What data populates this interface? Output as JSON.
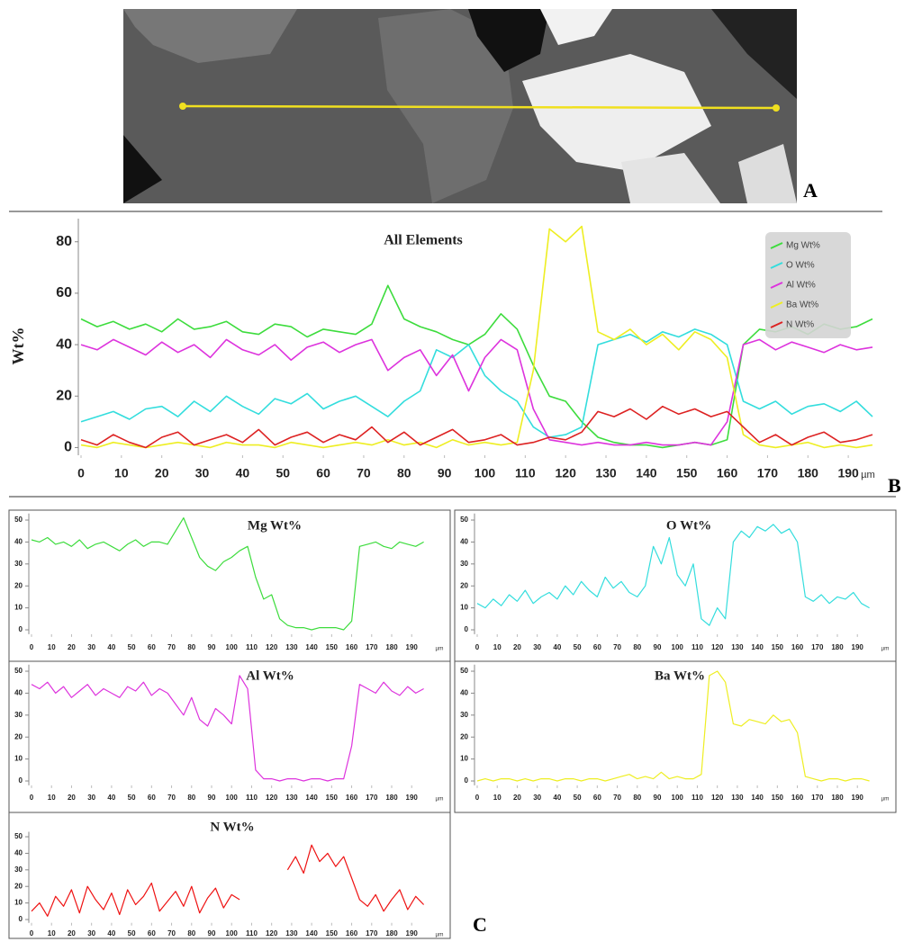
{
  "panel_labels": [
    "A",
    "B",
    "C"
  ],
  "chart_data": [
    {
      "type": "line",
      "title": "All Elements",
      "y_label": "Wt%",
      "x_label": "µm",
      "legend": "upper right",
      "x": [
        0,
        4,
        8,
        12,
        16,
        20,
        24,
        28,
        32,
        36,
        40,
        44,
        48,
        52,
        56,
        60,
        64,
        68,
        72,
        76,
        80,
        84,
        88,
        92,
        96,
        100,
        104,
        108,
        112,
        116,
        120,
        124,
        128,
        132,
        136,
        140,
        144,
        148,
        152,
        156,
        160,
        164,
        168,
        172,
        176,
        180,
        184,
        188,
        192,
        196
      ],
      "series": [
        {
          "name": "Mg Wt%",
          "color": "#3ddc3d",
          "values": [
            50,
            47,
            49,
            46,
            48,
            45,
            50,
            46,
            47,
            49,
            45,
            44,
            48,
            47,
            43,
            46,
            45,
            44,
            48,
            63,
            50,
            47,
            45,
            42,
            40,
            44,
            52,
            46,
            32,
            20,
            18,
            10,
            4,
            2,
            1,
            1,
            0,
            1,
            2,
            1,
            3,
            40,
            46,
            45,
            47,
            44,
            48,
            46,
            47,
            50
          ]
        },
        {
          "name": "O Wt%",
          "color": "#33dddd",
          "values": [
            10,
            12,
            14,
            11,
            15,
            16,
            12,
            18,
            14,
            20,
            16,
            13,
            19,
            17,
            21,
            15,
            18,
            20,
            16,
            12,
            18,
            22,
            38,
            35,
            40,
            28,
            22,
            18,
            8,
            4,
            5,
            8,
            40,
            42,
            44,
            41,
            45,
            43,
            46,
            44,
            40,
            18,
            15,
            18,
            13,
            16,
            17,
            14,
            18,
            12
          ]
        },
        {
          "name": "Al Wt%",
          "color": "#dd33dd",
          "values": [
            40,
            38,
            42,
            39,
            36,
            41,
            37,
            40,
            35,
            42,
            38,
            36,
            40,
            34,
            39,
            41,
            37,
            40,
            42,
            30,
            35,
            38,
            28,
            36,
            22,
            35,
            42,
            38,
            15,
            3,
            2,
            1,
            2,
            1,
            1,
            2,
            1,
            1,
            2,
            1,
            10,
            40,
            42,
            38,
            41,
            39,
            37,
            40,
            38,
            39
          ]
        },
        {
          "name": "Ba Wt%",
          "color": "#eeee22",
          "values": [
            1,
            0,
            2,
            1,
            0,
            1,
            2,
            1,
            0,
            2,
            1,
            1,
            0,
            2,
            1,
            0,
            1,
            2,
            1,
            3,
            1,
            2,
            0,
            3,
            1,
            2,
            1,
            2,
            30,
            85,
            80,
            86,
            45,
            42,
            46,
            40,
            44,
            38,
            45,
            42,
            35,
            5,
            1,
            0,
            1,
            2,
            0,
            1,
            0,
            1
          ]
        },
        {
          "name": "N Wt%",
          "color": "#dd2222",
          "values": [
            3,
            1,
            5,
            2,
            0,
            4,
            6,
            1,
            3,
            5,
            2,
            7,
            1,
            4,
            6,
            2,
            5,
            3,
            8,
            2,
            6,
            1,
            4,
            7,
            2,
            3,
            5,
            1,
            2,
            4,
            3,
            6,
            14,
            12,
            15,
            11,
            16,
            13,
            15,
            12,
            14,
            8,
            2,
            5,
            1,
            4,
            6,
            2,
            3,
            5
          ]
        }
      ],
      "xlim": [
        0,
        198
      ],
      "ylim": [
        -3,
        89
      ],
      "xticks": [
        0,
        10,
        20,
        30,
        40,
        50,
        60,
        70,
        80,
        90,
        100,
        110,
        120,
        130,
        140,
        150,
        160,
        170,
        180,
        190
      ],
      "yticks": [
        0,
        20,
        40,
        60,
        80
      ]
    },
    {
      "type": "line",
      "title": "Mg Wt%",
      "x_label": "µm",
      "color": "#3ddc3d",
      "x": [
        0,
        4,
        8,
        12,
        16,
        20,
        24,
        28,
        32,
        36,
        40,
        44,
        48,
        52,
        56,
        60,
        64,
        68,
        72,
        76,
        80,
        84,
        88,
        92,
        96,
        100,
        104,
        108,
        112,
        116,
        120,
        124,
        128,
        132,
        136,
        140,
        144,
        148,
        152,
        156,
        160,
        164,
        168,
        172,
        176,
        180,
        184,
        188,
        192,
        196
      ],
      "values": [
        41,
        40,
        42,
        39,
        40,
        38,
        41,
        37,
        39,
        40,
        38,
        36,
        39,
        41,
        38,
        40,
        40,
        39,
        45,
        51,
        42,
        33,
        29,
        27,
        31,
        33,
        36,
        38,
        24,
        14,
        16,
        5,
        2,
        1,
        1,
        0,
        1,
        1,
        1,
        0,
        4,
        38,
        39,
        40,
        38,
        37,
        40,
        39,
        38,
        40
      ],
      "xlim": [
        0,
        198
      ],
      "ylim": [
        -2,
        53
      ],
      "xticks": [
        0,
        10,
        20,
        30,
        40,
        50,
        60,
        70,
        80,
        90,
        100,
        110,
        120,
        130,
        140,
        150,
        160,
        170,
        180,
        190
      ],
      "yticks": [
        0,
        10,
        20,
        30,
        40,
        50
      ]
    },
    {
      "type": "line",
      "title": "O Wt%",
      "x_label": "µm",
      "color": "#33dddd",
      "x": [
        0,
        4,
        8,
        12,
        16,
        20,
        24,
        28,
        32,
        36,
        40,
        44,
        48,
        52,
        56,
        60,
        64,
        68,
        72,
        76,
        80,
        84,
        88,
        92,
        96,
        100,
        104,
        108,
        112,
        116,
        120,
        124,
        128,
        132,
        136,
        140,
        144,
        148,
        152,
        156,
        160,
        164,
        168,
        172,
        176,
        180,
        184,
        188,
        192,
        196
      ],
      "values": [
        12,
        10,
        14,
        11,
        16,
        13,
        18,
        12,
        15,
        17,
        14,
        20,
        16,
        22,
        18,
        15,
        24,
        19,
        22,
        17,
        15,
        20,
        38,
        30,
        42,
        25,
        20,
        30,
        5,
        2,
        10,
        5,
        40,
        45,
        42,
        47,
        45,
        48,
        44,
        46,
        40,
        15,
        13,
        16,
        12,
        15,
        14,
        17,
        12,
        10
      ],
      "xlim": [
        0,
        198
      ],
      "ylim": [
        -2,
        53
      ],
      "xticks": [
        0,
        10,
        20,
        30,
        40,
        50,
        60,
        70,
        80,
        90,
        100,
        110,
        120,
        130,
        140,
        150,
        160,
        170,
        180,
        190
      ],
      "yticks": [
        0,
        10,
        20,
        30,
        40,
        50
      ]
    },
    {
      "type": "line",
      "title": "Al Wt%",
      "x_label": "µm",
      "color": "#dd33dd",
      "x": [
        0,
        4,
        8,
        12,
        16,
        20,
        24,
        28,
        32,
        36,
        40,
        44,
        48,
        52,
        56,
        60,
        64,
        68,
        72,
        76,
        80,
        84,
        88,
        92,
        96,
        100,
        104,
        108,
        112,
        116,
        120,
        124,
        128,
        132,
        136,
        140,
        144,
        148,
        152,
        156,
        160,
        164,
        168,
        172,
        176,
        180,
        184,
        188,
        192,
        196
      ],
      "values": [
        44,
        42,
        45,
        40,
        43,
        38,
        41,
        44,
        39,
        42,
        40,
        38,
        43,
        41,
        45,
        39,
        42,
        40,
        35,
        30,
        38,
        28,
        25,
        33,
        30,
        26,
        48,
        42,
        5,
        1,
        1,
        0,
        1,
        1,
        0,
        1,
        1,
        0,
        1,
        1,
        16,
        44,
        42,
        40,
        45,
        41,
        39,
        43,
        40,
        42
      ],
      "xlim": [
        0,
        198
      ],
      "ylim": [
        -2,
        53
      ],
      "xticks": [
        0,
        10,
        20,
        30,
        40,
        50,
        60,
        70,
        80,
        90,
        100,
        110,
        120,
        130,
        140,
        150,
        160,
        170,
        180,
        190
      ],
      "yticks": [
        0,
        10,
        20,
        30,
        40,
        50
      ]
    },
    {
      "type": "line",
      "title": "Ba Wt%",
      "x_label": "µm",
      "color": "#eeee22",
      "x": [
        0,
        4,
        8,
        12,
        16,
        20,
        24,
        28,
        32,
        36,
        40,
        44,
        48,
        52,
        56,
        60,
        64,
        68,
        72,
        76,
        80,
        84,
        88,
        92,
        96,
        100,
        104,
        108,
        112,
        116,
        120,
        124,
        128,
        132,
        136,
        140,
        144,
        148,
        152,
        156,
        160,
        164,
        168,
        172,
        176,
        180,
        184,
        188,
        192,
        196
      ],
      "values": [
        0,
        1,
        0,
        1,
        1,
        0,
        1,
        0,
        1,
        1,
        0,
        1,
        1,
        0,
        1,
        1,
        0,
        1,
        2,
        3,
        1,
        2,
        1,
        4,
        1,
        2,
        1,
        1,
        3,
        48,
        50,
        45,
        26,
        25,
        28,
        27,
        26,
        30,
        27,
        28,
        22,
        2,
        1,
        0,
        1,
        1,
        0,
        1,
        1,
        0
      ],
      "xlim": [
        0,
        198
      ],
      "ylim": [
        -2,
        53
      ],
      "xticks": [
        0,
        10,
        20,
        30,
        40,
        50,
        60,
        70,
        80,
        90,
        100,
        110,
        120,
        130,
        140,
        150,
        160,
        170,
        180,
        190
      ],
      "yticks": [
        0,
        10,
        20,
        30,
        40,
        50
      ]
    },
    {
      "type": "line",
      "title": "N Wt%",
      "x_label": "µm",
      "color": "#ee1111",
      "x": [
        0,
        4,
        8,
        12,
        16,
        20,
        24,
        28,
        32,
        36,
        40,
        44,
        48,
        52,
        56,
        60,
        64,
        68,
        72,
        76,
        80,
        84,
        88,
        92,
        96,
        100,
        104,
        108,
        112,
        116,
        120,
        124,
        128,
        132,
        136,
        140,
        144,
        148,
        152,
        156,
        160,
        164,
        168,
        172,
        176,
        180,
        184,
        188,
        192,
        196
      ],
      "values": [
        5,
        10,
        2,
        14,
        8,
        18,
        4,
        20,
        12,
        6,
        16,
        3,
        18,
        9,
        14,
        22,
        5,
        11,
        17,
        8,
        20,
        4,
        13,
        19,
        7,
        15,
        12,
        null,
        null,
        null,
        null,
        null,
        30,
        38,
        28,
        45,
        35,
        40,
        32,
        38,
        25,
        12,
        8,
        15,
        5,
        12,
        18,
        6,
        14,
        9
      ],
      "xlim": [
        0,
        198
      ],
      "ylim": [
        -2,
        53
      ],
      "xticks": [
        0,
        10,
        20,
        30,
        40,
        50,
        60,
        70,
        80,
        90,
        100,
        110,
        120,
        130,
        140,
        150,
        160,
        170,
        180,
        190
      ],
      "yticks": [
        0,
        10,
        20,
        30,
        40,
        50
      ]
    }
  ]
}
